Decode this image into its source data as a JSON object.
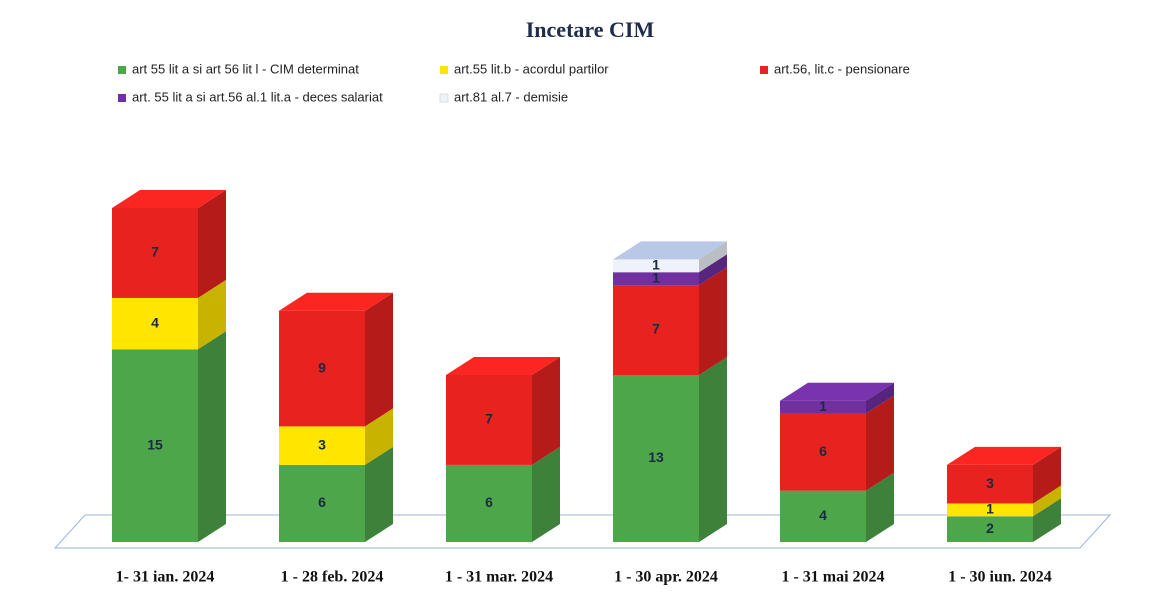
{
  "chart_data": {
    "type": "bar3d_stacked",
    "title": "Incetare CIM",
    "categories": [
      "1- 31 ian. 2024",
      "1 - 28 feb. 2024",
      "1 - 31 mar. 2024",
      "1 - 30 apr. 2024",
      "1 - 31 mai 2024",
      "1 - 30 iun. 2024"
    ],
    "series": [
      {
        "name": "art 55 lit a si art 56 lit l - CIM determinat",
        "color": "#4ea64a",
        "values": [
          15,
          6,
          6,
          13,
          4,
          2
        ]
      },
      {
        "name": "art.55 lit.b - acordul partilor",
        "color": "#ffe600",
        "values": [
          4,
          3,
          null,
          null,
          null,
          1
        ]
      },
      {
        "name": "art.56, lit.c - pensionare",
        "color": "#e8231f",
        "values": [
          7,
          9,
          7,
          7,
          6,
          3
        ]
      },
      {
        "name": "art. 55 lit a si art.56 al.1 lit.a - deces salariat",
        "color": "#7030a0",
        "values": [
          null,
          null,
          null,
          1,
          1,
          null
        ]
      },
      {
        "name": "art.81 al.7 - demisie",
        "color": "#eef2f9",
        "values": [
          null,
          null,
          null,
          1,
          null,
          null
        ]
      }
    ]
  }
}
